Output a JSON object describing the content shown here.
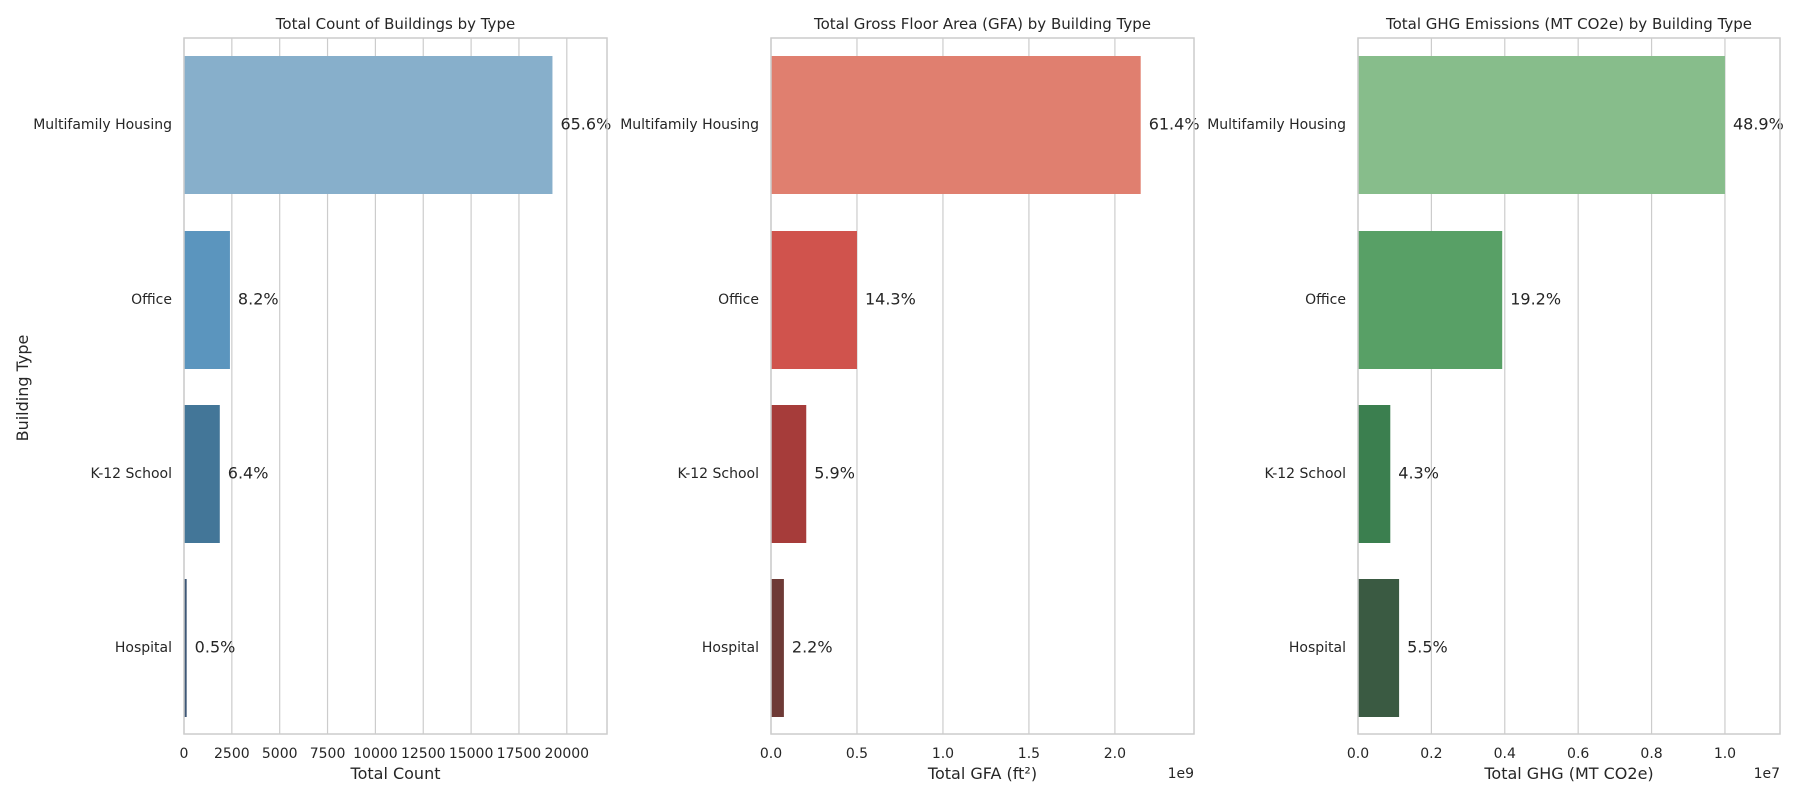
{
  "figure": {
    "ylabel": "Building Type"
  },
  "chart_data": [
    {
      "type": "bar",
      "orientation": "horizontal",
      "title": "Total Count of Buildings by Type",
      "categories": [
        "Multifamily Housing",
        "Office",
        "K-12 School",
        "Hospital"
      ],
      "values": [
        19250,
        2400,
        1870,
        140
      ],
      "data_labels": [
        "65.6%",
        "8.2%",
        "6.4%",
        "0.5%"
      ],
      "xlabel": "Total Count",
      "ylabel": "Building Type",
      "xlim": [
        0,
        22100
      ],
      "xticks": [
        0,
        2500,
        5000,
        7500,
        10000,
        12500,
        15000,
        17500,
        20000
      ],
      "tick_labels": [
        "0",
        "2500",
        "5000",
        "7500",
        "10000",
        "12500",
        "15000",
        "17500",
        "20000"
      ],
      "offset_label": "",
      "colors": [
        "#87afcb",
        "#5b95be",
        "#437698",
        "#3f5877"
      ],
      "grid": "x"
    },
    {
      "type": "bar",
      "orientation": "horizontal",
      "title": "Total Gross Floor Area (GFA) by Building Type",
      "categories": [
        "Multifamily Housing",
        "Office",
        "K-12 School",
        "Hospital"
      ],
      "values": [
        2.15,
        0.5,
        0.205,
        0.075
      ],
      "data_labels": [
        "61.4%",
        "14.3%",
        "5.9%",
        "2.2%"
      ],
      "xlabel": "Total GFA (ft²)",
      "xlim": [
        0,
        2.46
      ],
      "xticks": [
        0,
        0.5,
        1.0,
        1.5,
        2.0
      ],
      "tick_labels": [
        "0.0",
        "0.5",
        "1.0",
        "1.5",
        "2.0"
      ],
      "offset_label": "1e9",
      "colors": [
        "#e07f6f",
        "#d0534d",
        "#a63c3a",
        "#6e3a36"
      ],
      "grid": "x"
    },
    {
      "type": "bar",
      "orientation": "horizontal",
      "title": "Total GHG Emissions (MT CO2e) by Building Type",
      "categories": [
        "Multifamily Housing",
        "Office",
        "K-12 School",
        "Hospital"
      ],
      "values": [
        1.0,
        0.393,
        0.088,
        0.112
      ],
      "data_labels": [
        "48.9%",
        "19.2%",
        "4.3%",
        "5.5%"
      ],
      "xlabel": "Total GHG (MT CO2e)",
      "xlim": [
        0,
        1.15
      ],
      "xticks": [
        0,
        0.2,
        0.4,
        0.6,
        0.8,
        1.0
      ],
      "tick_labels": [
        "0.0",
        "0.2",
        "0.4",
        "0.6",
        "0.8",
        "1.0"
      ],
      "offset_label": "1e7",
      "colors": [
        "#87bd8b",
        "#58a066",
        "#3b7f4f",
        "#3a5a42"
      ],
      "grid": "x"
    }
  ]
}
